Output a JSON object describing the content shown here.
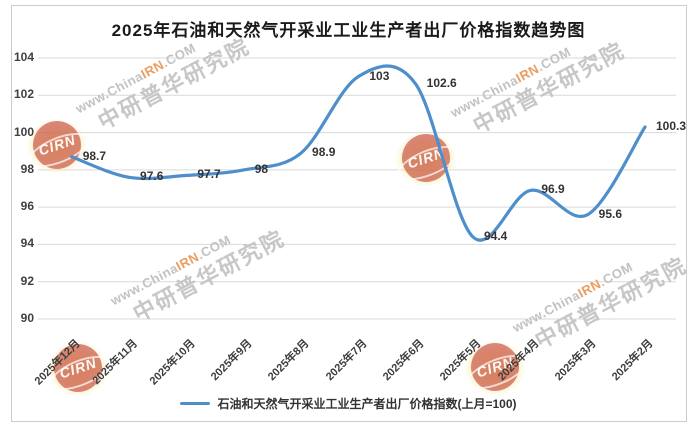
{
  "title": "2025年石油和天然气开采业工业生产者出厂价格指数趋势图",
  "legend": {
    "label": "石油和天然气开采业工业生产者出厂价格指数(上月=100)"
  },
  "watermark": {
    "logo_text": "CIRN",
    "url_prefix": "www.China",
    "url_highlight": "IRN",
    "url_suffix": ".COM",
    "brand_text": "中研普华研究院"
  },
  "colors": {
    "line": "#4E8ECB",
    "grid": "#d9d9d9",
    "axis_text": "#404040",
    "title_text": "#1a1a1a",
    "watermark_gray": "#c2c2c2",
    "watermark_orange": "#eb9d5f",
    "logo_red": "rgba(187,42,36,0.55)"
  },
  "chart_data": {
    "type": "line",
    "smooth": true,
    "title": "2025年石油和天然气开采业工业生产者出厂价格指数趋势图",
    "categories": [
      "2025年12月",
      "2025年11月",
      "2025年10月",
      "2025年9月",
      "2025年8月",
      "2025年7月",
      "2025年6月",
      "2025年5月",
      "2025年4月",
      "2025年3月",
      "2025年2月"
    ],
    "series": [
      {
        "name": "石油和天然气开采业工业生产者出厂价格指数(上月=100)",
        "values": [
          98.7,
          97.6,
          97.7,
          98,
          98.9,
          103,
          102.6,
          94.4,
          96.9,
          95.6,
          100.3
        ]
      }
    ],
    "point_labels": [
      "98.7",
      "97.6",
      "97.7",
      "98",
      "98.9",
      "103",
      "102.6",
      "94.4",
      "96.9",
      "95.6",
      "100.3"
    ],
    "xlabel": "",
    "ylabel": "",
    "ylim": [
      90,
      104
    ],
    "ytick_step": 2,
    "yticks": [
      104,
      102,
      100,
      98,
      96,
      94,
      92,
      90
    ],
    "grid": true,
    "xlabel_rotation": -45,
    "legend_position": "bottom"
  }
}
